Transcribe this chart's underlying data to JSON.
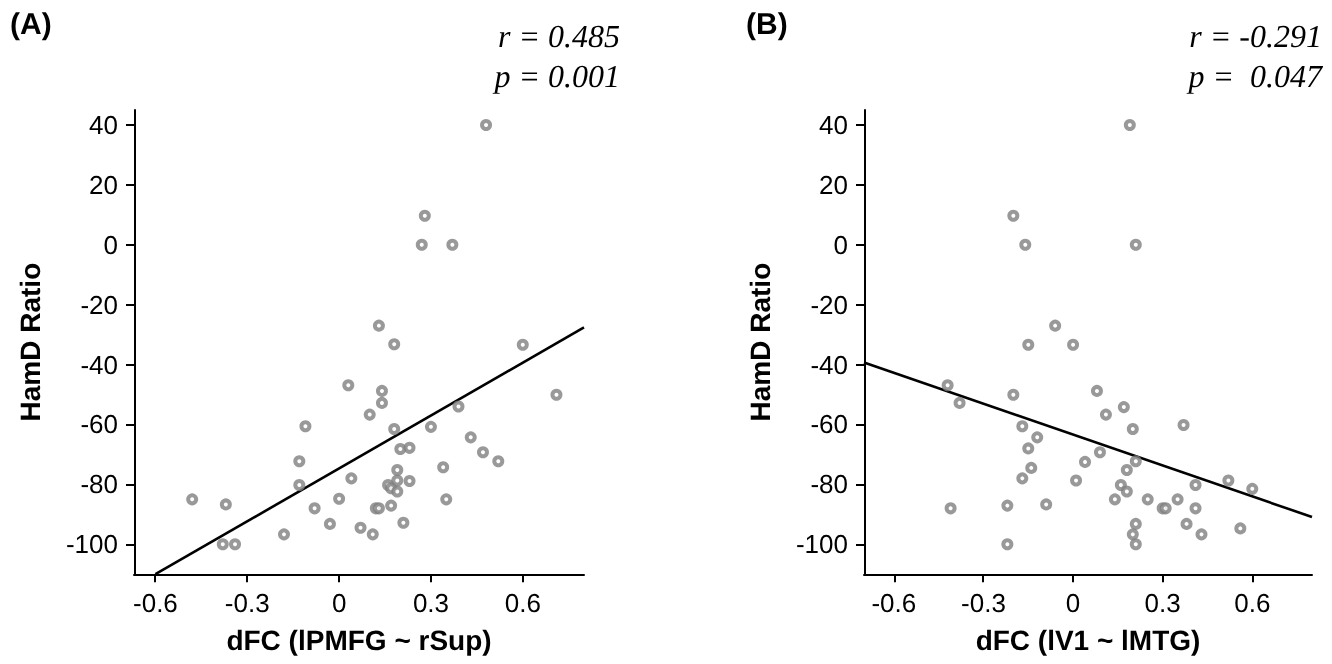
{
  "chart_data": [
    {
      "type": "scatter",
      "title": "(A)",
      "xlabel": "dFC (lPMFG ~ rSup)",
      "ylabel": "HamD Ratio",
      "annotations": [
        "r = 0.485",
        "p = 0.001"
      ],
      "grid": false,
      "xlim": [
        -0.67,
        0.8
      ],
      "ylim": [
        -110,
        45
      ],
      "xticks": [
        -0.6,
        -0.3,
        0,
        0.3,
        0.6
      ],
      "yticks": [
        -100,
        -80,
        -60,
        -40,
        -20,
        0,
        20,
        40
      ],
      "series": [
        {
          "marker": "circle",
          "color": "#7f7f7f",
          "x": [
            -0.48,
            -0.37,
            -0.38,
            -0.34,
            -0.18,
            -0.11,
            -0.13,
            -0.13,
            -0.08,
            -0.03,
            0,
            0.04,
            0.03,
            0.07,
            0.1,
            0.11,
            0.12,
            0.13,
            0.13,
            0.14,
            0.14,
            0.16,
            0.17,
            0.18,
            0.17,
            0.18,
            0.19,
            0.19,
            0.19,
            0.2,
            0.21,
            0.23,
            0.23,
            0.28,
            0.27,
            0.3,
            0.34,
            0.35,
            0.37,
            0.39,
            0.43,
            0.47,
            0.48,
            0.52,
            0.6,
            0.71
          ],
          "values": [
            -85,
            -86.7,
            -100,
            -100,
            -96.7,
            -60.6,
            -72.3,
            -80.2,
            -88,
            -93.2,
            -84.8,
            -78,
            -46.9,
            -94.5,
            -56.7,
            -96.7,
            -88,
            -88,
            -27,
            -52.8,
            -48.8,
            -80.2,
            -81.3,
            -61.5,
            -87.1,
            -33.2,
            -75.2,
            -78.7,
            -82.4,
            -68.2,
            -92.8,
            -78.9,
            -67.8,
            9.7,
            0,
            -60.8,
            -74.3,
            -85,
            0,
            -54,
            -64.3,
            -69.3,
            40,
            -72.3,
            -33.4,
            -50.1
          ]
        },
        {
          "type": "line",
          "marker": "none",
          "color": "#000000",
          "x": [
            -0.6,
            0.8
          ],
          "values": [
            -110,
            -27.6
          ]
        }
      ]
    },
    {
      "type": "scatter",
      "title": "(B)",
      "xlabel": "dFC (lV1 ~ lMTG)",
      "ylabel": "HamD Ratio",
      "annotations": [
        "r = -0.291",
        "p =  0.047"
      ],
      "grid": false,
      "xlim": [
        -0.7,
        0.8
      ],
      "ylim": [
        -110,
        45
      ],
      "xticks": [
        -0.6,
        -0.3,
        0,
        0.3,
        0.6
      ],
      "yticks": [
        -100,
        -80,
        -60,
        -40,
        -20,
        0,
        20,
        40
      ],
      "series": [
        {
          "marker": "circle",
          "color": "#7f7f7f",
          "x": [
            -0.42,
            -0.38,
            -0.41,
            -0.22,
            -0.22,
            -0.2,
            -0.2,
            -0.16,
            -0.17,
            -0.17,
            -0.15,
            -0.15,
            -0.14,
            -0.12,
            -0.09,
            -0.06,
            0,
            0.01,
            0.04,
            0.08,
            0.09,
            0.11,
            0.14,
            0.16,
            0.17,
            0.18,
            0.18,
            0.19,
            0.2,
            0.2,
            0.21,
            0.21,
            0.21,
            0.21,
            0.25,
            0.3,
            0.31,
            0.35,
            0.37,
            0.38,
            0.41,
            0.41,
            0.43,
            0.52,
            0.56,
            0.6
          ],
          "values": [
            -46.9,
            -52.8,
            -88,
            -87.1,
            -100,
            9.7,
            -50.1,
            0,
            -60.6,
            -78,
            -33.4,
            -68,
            -74.5,
            -64.3,
            -86.7,
            -27,
            -33.4,
            -78.7,
            -72.5,
            -48.8,
            -69.3,
            -56.7,
            -85,
            -80.2,
            -54.2,
            -75.2,
            -82.4,
            40,
            -61.5,
            -96.7,
            0,
            -72.3,
            -93.2,
            -100,
            -85,
            -88,
            -88,
            -85,
            -60.2,
            -93.2,
            -80.2,
            -88,
            -96.7,
            -78.7,
            -94.7,
            -81.5
          ]
        },
        {
          "type": "line",
          "marker": "none",
          "color": "#000000",
          "x": [
            -0.7,
            0.8
          ],
          "values": [
            -39.3,
            -90.9
          ]
        }
      ]
    }
  ]
}
